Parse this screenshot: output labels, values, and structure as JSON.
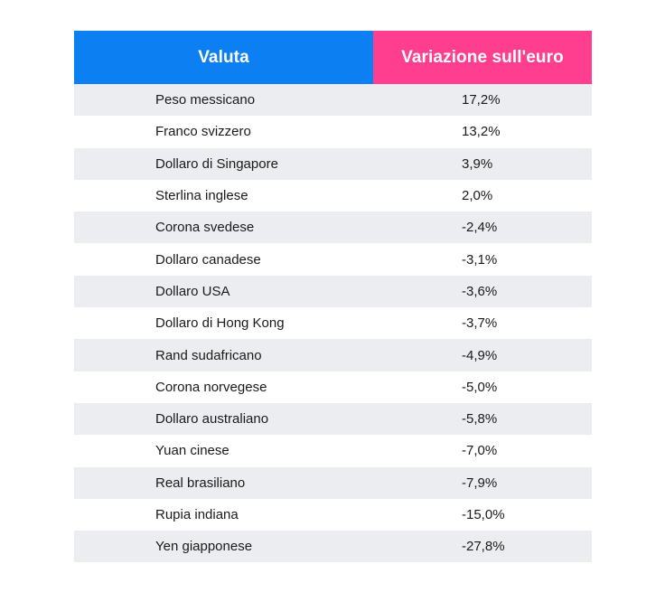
{
  "table": {
    "headers": {
      "currency": "Valuta",
      "change": "Variazione sull'euro"
    },
    "rows": [
      {
        "currency": "Peso messicano",
        "change": "17,2%"
      },
      {
        "currency": "Franco svizzero",
        "change": "13,2%"
      },
      {
        "currency": "Dollaro di Singapore",
        "change": "3,9%"
      },
      {
        "currency": "Sterlina inglese",
        "change": "2,0%"
      },
      {
        "currency": "Corona svedese",
        "change": "-2,4%"
      },
      {
        "currency": "Dollaro canadese",
        "change": "-3,1%"
      },
      {
        "currency": "Dollaro USA",
        "change": "-3,6%"
      },
      {
        "currency": "Dollaro di Hong Kong",
        "change": "-3,7%"
      },
      {
        "currency": "Rand sudafricano",
        "change": "-4,9%"
      },
      {
        "currency": "Corona norvegese",
        "change": "-5,0%"
      },
      {
        "currency": "Dollaro australiano",
        "change": "-5,8%"
      },
      {
        "currency": "Yuan cinese",
        "change": "-7,0%"
      },
      {
        "currency": "Real brasiliano",
        "change": "-7,9%"
      },
      {
        "currency": "Rupia indiana",
        "change": "-15,0%"
      },
      {
        "currency": "Yen giapponese",
        "change": "-27,8%"
      }
    ]
  },
  "colors": {
    "header_currency_bg": "#0c7ff2",
    "header_change_bg": "#ff3e8f",
    "row_stripe": "#ecedf0"
  }
}
